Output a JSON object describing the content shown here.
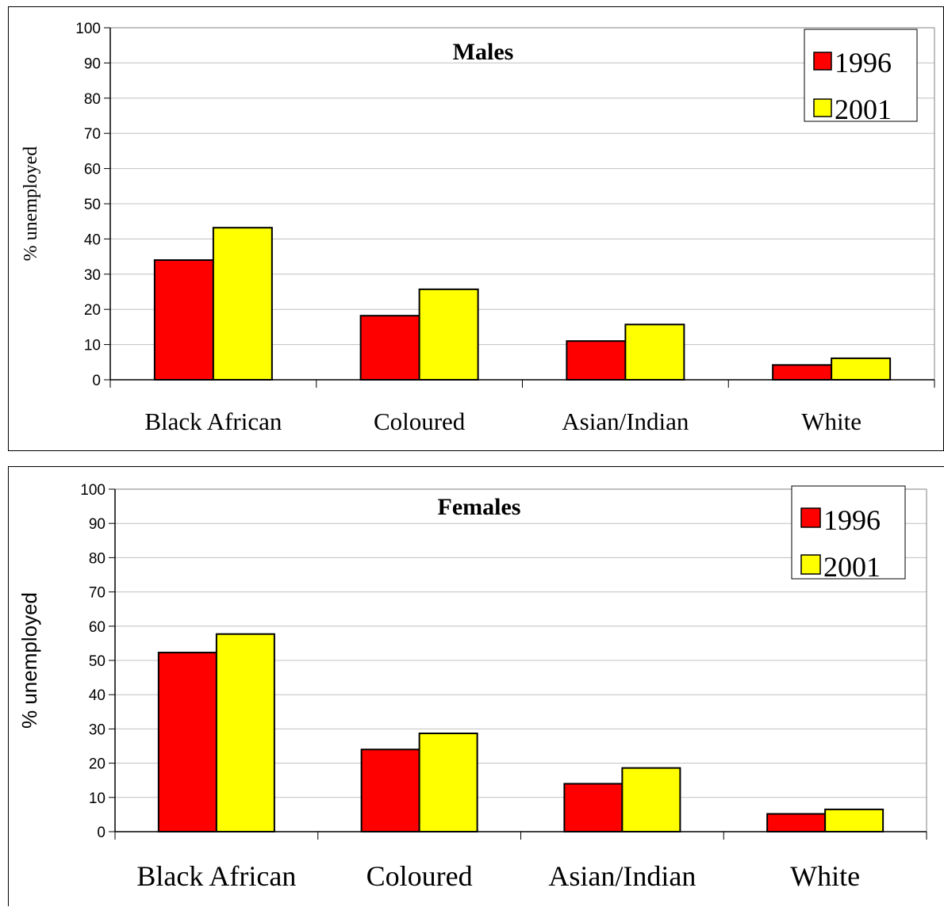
{
  "colors": {
    "series_1996": "#ff0000",
    "series_2001": "#ffff00",
    "gridline": "#c0c0c0"
  },
  "chart_data": [
    {
      "type": "bar",
      "title": "Males",
      "ylabel": "% unemployed",
      "xlabel": "",
      "categories": [
        "Black African",
        "Coloured",
        "Asian/Indian",
        "White"
      ],
      "series": [
        {
          "name": "1996",
          "values": [
            34,
            18.2,
            11,
            4.2
          ]
        },
        {
          "name": "2001",
          "values": [
            43.2,
            25.7,
            15.7,
            6.1
          ]
        }
      ],
      "ylim": [
        0,
        100
      ],
      "yticks": [
        "0",
        "10",
        "20",
        "30",
        "40",
        "50",
        "60",
        "70",
        "80",
        "90",
        "100"
      ],
      "grid": true,
      "legend": "top-right"
    },
    {
      "type": "bar",
      "title": "Females",
      "ylabel": "% unemployed",
      "xlabel": "",
      "categories": [
        "Black African",
        "Coloured",
        "Asian/Indian",
        "White"
      ],
      "series": [
        {
          "name": "1996",
          "values": [
            52.3,
            24,
            14,
            5.2
          ]
        },
        {
          "name": "2001",
          "values": [
            57.7,
            28.7,
            18.6,
            6.5
          ]
        }
      ],
      "ylim": [
        0,
        100
      ],
      "yticks": [
        "0",
        "10",
        "20",
        "30",
        "40",
        "50",
        "60",
        "70",
        "80",
        "90",
        "100"
      ],
      "grid": true,
      "legend": "top-right"
    }
  ]
}
